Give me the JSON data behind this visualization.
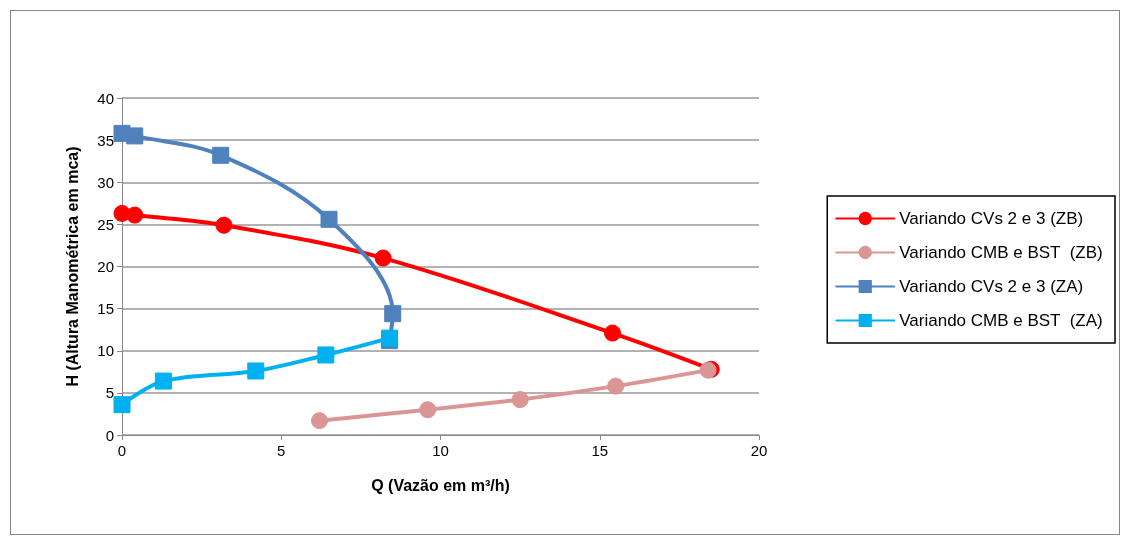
{
  "chart_data": {
    "type": "line",
    "xlabel": "Q (Vazão em m³/h)",
    "ylabel": "H (Altura Manométrica em mca)",
    "xlim": [
      0,
      20
    ],
    "xticks": [
      0,
      5,
      10,
      15,
      20
    ],
    "ylim": [
      0,
      40
    ],
    "yticks": [
      0,
      5,
      10,
      15,
      20,
      25,
      30,
      35,
      40
    ],
    "grid": "y",
    "legend": "right",
    "line_style": "solid",
    "series": [
      {
        "name": "Variando CVs 2 e 3 (ZB)",
        "color": "#ff0000",
        "marker": "circle",
        "x": [
          0,
          0.4,
          3.2,
          8.2,
          15.4,
          18.5
        ],
        "values": [
          26.3,
          26.1,
          24.9,
          21.0,
          12.1,
          7.8
        ]
      },
      {
        "name": "Variando CMB e BST  (ZB)",
        "color": "#d99694",
        "marker": "circle",
        "x": [
          6.2,
          9.6,
          12.5,
          15.5,
          18.4
        ],
        "values": [
          1.7,
          3.0,
          4.2,
          5.8,
          7.7
        ]
      },
      {
        "name": "Variando CVs 2 e 3 (ZA)",
        "color": "#4f81bd",
        "marker": "square",
        "x": [
          0,
          0.4,
          3.1,
          6.5,
          8.5,
          8.4
        ],
        "values": [
          35.8,
          35.5,
          33.2,
          25.6,
          14.4,
          11.2
        ]
      },
      {
        "name": "Variando CMB e BST  (ZA)",
        "color": "#00b0f0",
        "marker": "square",
        "x": [
          0,
          1.3,
          4.2,
          6.4,
          8.4
        ],
        "values": [
          3.6,
          6.4,
          7.6,
          9.5,
          11.5
        ]
      }
    ]
  }
}
